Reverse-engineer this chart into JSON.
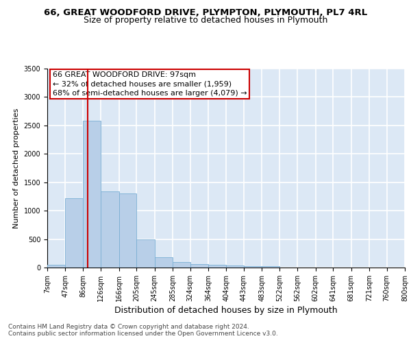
{
  "title": "66, GREAT WOODFORD DRIVE, PLYMPTON, PLYMOUTH, PL7 4RL",
  "subtitle": "Size of property relative to detached houses in Plymouth",
  "xlabel": "Distribution of detached houses by size in Plymouth",
  "ylabel": "Number of detached properties",
  "bin_edges": [
    7,
    47,
    86,
    126,
    166,
    205,
    245,
    285,
    324,
    364,
    404,
    443,
    483,
    522,
    562,
    602,
    641,
    681,
    721,
    760,
    800
  ],
  "bin_counts": [
    50,
    1220,
    2580,
    1340,
    1300,
    495,
    185,
    95,
    55,
    45,
    35,
    20,
    20,
    0,
    0,
    0,
    0,
    0,
    0,
    0
  ],
  "bar_color": "#b8cfe8",
  "bar_edgecolor": "#7aafd4",
  "property_size": 97,
  "vline_color": "#cc0000",
  "annotation_text": "66 GREAT WOODFORD DRIVE: 97sqm\n← 32% of detached houses are smaller (1,959)\n68% of semi-detached houses are larger (4,079) →",
  "annotation_box_color": "#cc0000",
  "annotation_text_color": "#000000",
  "ylim": [
    0,
    3500
  ],
  "yticks": [
    0,
    500,
    1000,
    1500,
    2000,
    2500,
    3000,
    3500
  ],
  "background_color": "#dce8f5",
  "grid_color": "#ffffff",
  "footer_line1": "Contains HM Land Registry data © Crown copyright and database right 2024.",
  "footer_line2": "Contains public sector information licensed under the Open Government Licence v3.0.",
  "title_fontsize": 9.5,
  "subtitle_fontsize": 9,
  "xlabel_fontsize": 9,
  "ylabel_fontsize": 8,
  "tick_fontsize": 7,
  "annotation_fontsize": 8,
  "footer_fontsize": 6.5
}
